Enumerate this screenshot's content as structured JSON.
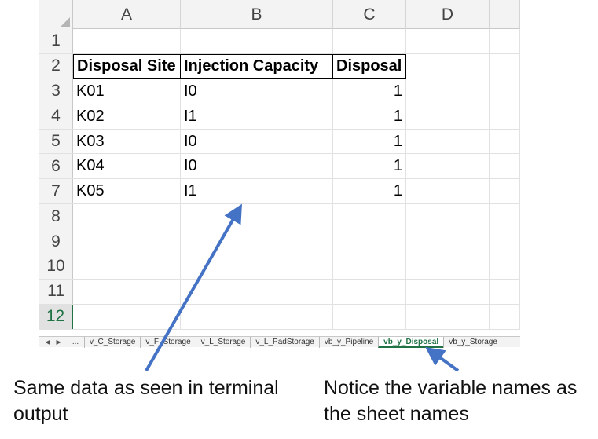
{
  "sheet": {
    "column_headers": [
      "A",
      "B",
      "C",
      "D"
    ],
    "row_headers": [
      "1",
      "2",
      "3",
      "4",
      "5",
      "6",
      "7",
      "8",
      "9",
      "10",
      "11",
      "12"
    ],
    "selected_row": "12",
    "table": {
      "headers": [
        "Disposal Site",
        "Injection Capacity",
        "Disposal"
      ],
      "rows": [
        [
          "K01",
          "I0",
          "1"
        ],
        [
          "K02",
          "I1",
          "1"
        ],
        [
          "K03",
          "I0",
          "1"
        ],
        [
          "K04",
          "I0",
          "1"
        ],
        [
          "K05",
          "I1",
          "1"
        ]
      ]
    }
  },
  "tabs": {
    "nav_prev": "◀",
    "nav_next": "▶",
    "ellipsis": "...",
    "items": [
      "v_C_Storage",
      "v_F_Storage",
      "v_L_Storage",
      "v_L_PadStorage",
      "vb_y_Pipeline",
      "vb_y_Disposal",
      "vb_y_Storage"
    ],
    "active": "vb_y_Disposal"
  },
  "annotations": {
    "left_caption": "Same data as seen in terminal output",
    "right_caption": "Notice the variable names as the sheet names",
    "arrow_color": "#4472c4",
    "accent_color": "#217346"
  }
}
